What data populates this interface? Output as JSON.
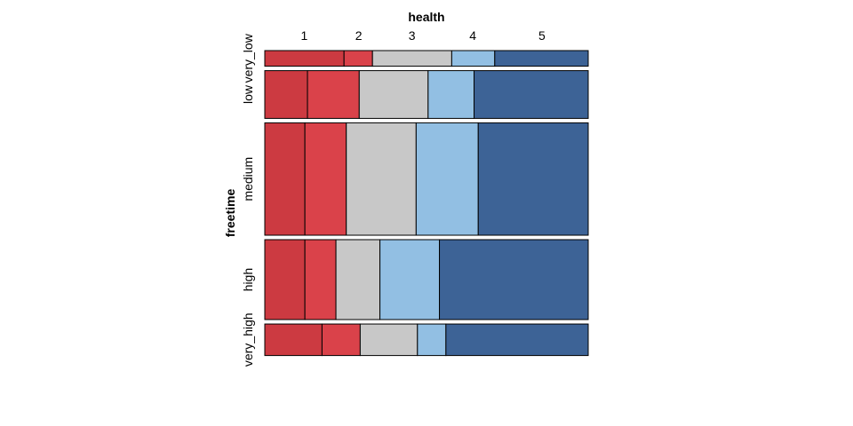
{
  "chart_data": {
    "type": "mosaic",
    "xlabel": "health",
    "ylabel": "freetime",
    "x_categories": [
      "1",
      "2",
      "3",
      "4",
      "5"
    ],
    "y_categories": [
      "very_low",
      "low",
      "medium",
      "high",
      "very_high"
    ],
    "colors": [
      "#cc3a41",
      "#da424a",
      "#c8c8c8",
      "#92bfe3",
      "#3d6396"
    ],
    "row_proportions": [
      0.051,
      0.156,
      0.367,
      0.261,
      0.103
    ],
    "segments": [
      {
        "y": "very_low",
        "values": [
          0.245,
          0.088,
          0.245,
          0.133,
          0.289
        ]
      },
      {
        "y": "low",
        "values": [
          0.132,
          0.16,
          0.213,
          0.142,
          0.353
        ]
      },
      {
        "y": "medium",
        "values": [
          0.124,
          0.128,
          0.216,
          0.192,
          0.34
        ]
      },
      {
        "y": "high",
        "values": [
          0.124,
          0.096,
          0.136,
          0.184,
          0.46
        ]
      },
      {
        "y": "very_high",
        "values": [
          0.177,
          0.118,
          0.177,
          0.088,
          0.44
        ]
      }
    ],
    "column_label_positions": [
      0.122,
      0.29,
      0.455,
      0.643,
      0.857
    ]
  }
}
